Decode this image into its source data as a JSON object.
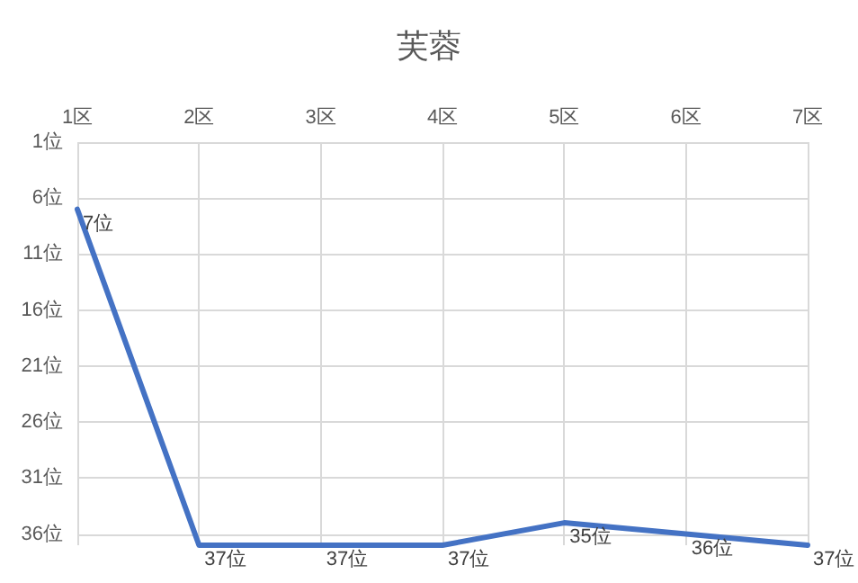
{
  "chart_data": {
    "type": "line",
    "title": "芙蓉",
    "categories": [
      "1区",
      "2区",
      "3区",
      "4区",
      "5区",
      "6区",
      "7区"
    ],
    "series": [
      {
        "color": "#4472c4",
        "values": [
          7,
          37,
          37,
          37,
          35,
          36,
          37
        ],
        "value_labels": [
          "7位",
          "37位",
          "37位",
          "37位",
          "35位",
          "36位",
          "37位"
        ]
      }
    ],
    "ylim": [
      37,
      1
    ],
    "yticks": [
      {
        "value": 1,
        "label": "1位"
      },
      {
        "value": 6,
        "label": "6位"
      },
      {
        "value": 11,
        "label": "11位"
      },
      {
        "value": 16,
        "label": "16位"
      },
      {
        "value": 21,
        "label": "21位"
      },
      {
        "value": 26,
        "label": "26位"
      },
      {
        "value": 31,
        "label": "31位"
      },
      {
        "value": 36,
        "label": "36位"
      }
    ],
    "grid": true,
    "marker": "none",
    "line_style": "solid"
  }
}
